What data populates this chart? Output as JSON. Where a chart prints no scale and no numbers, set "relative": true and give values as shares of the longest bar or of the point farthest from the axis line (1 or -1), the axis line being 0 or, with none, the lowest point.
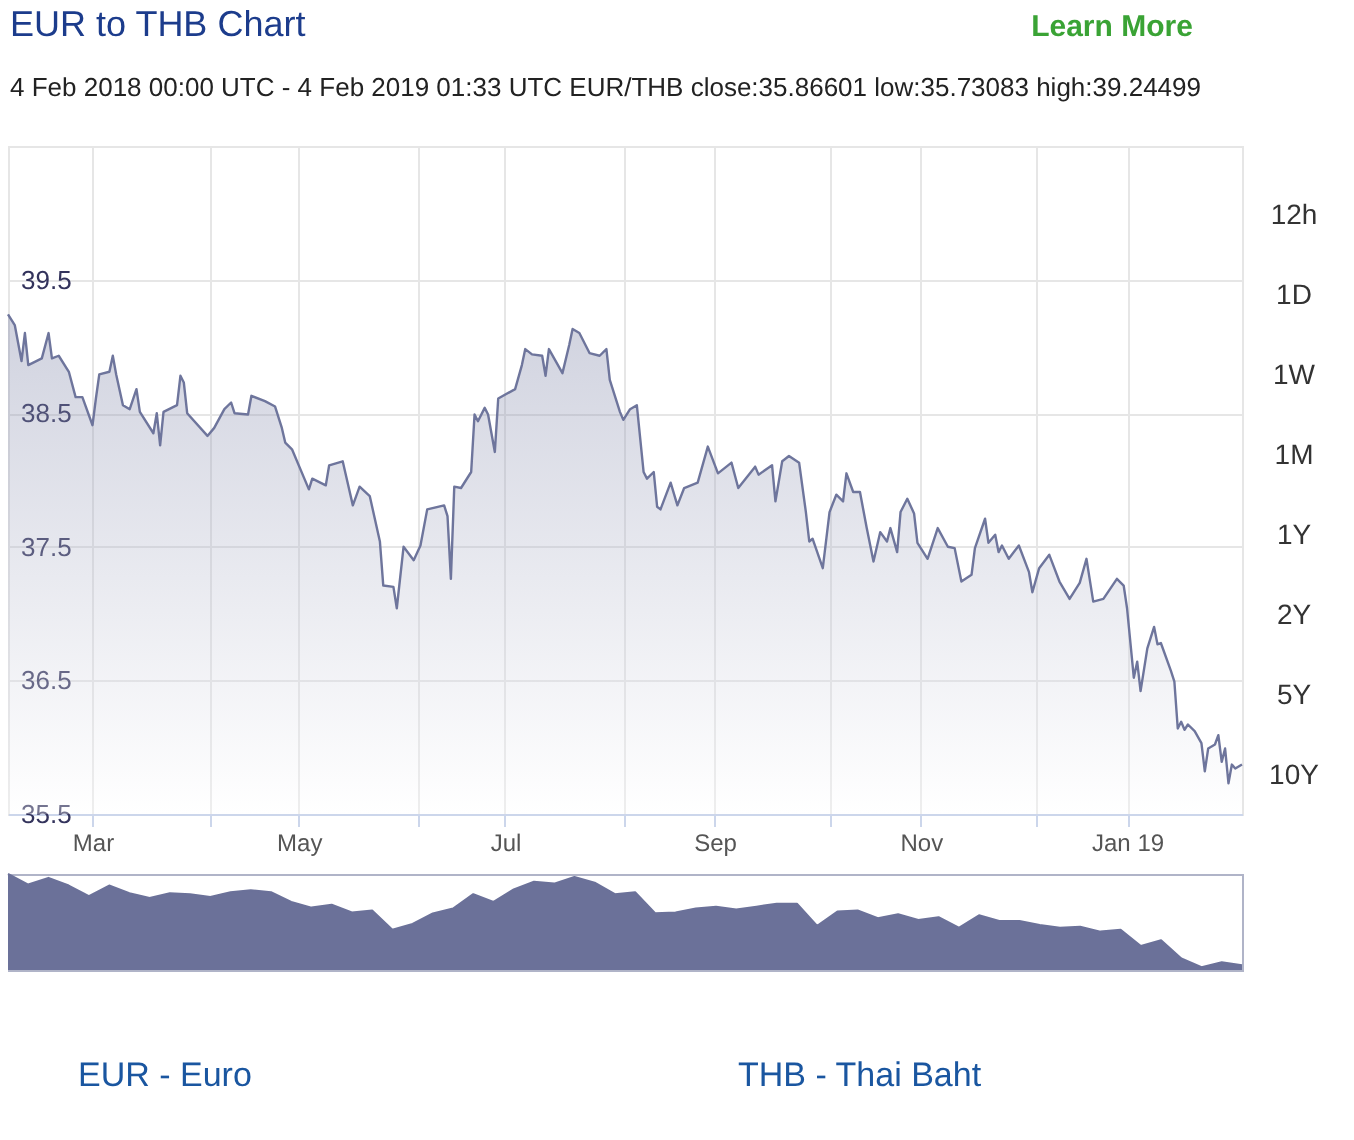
{
  "chart_data": [
    {
      "type": "area",
      "title": "EUR to THB Chart",
      "subtitle": "4 Feb 2018 00:00 UTC - 4 Feb 2019 01:33 UTC EUR/THB close:35.86601 low:35.73083 high:39.24499",
      "x": [
        "2018-02-04",
        "2018-02-06",
        "2018-02-08",
        "2018-02-09",
        "2018-02-10",
        "2018-02-14",
        "2018-02-16",
        "2018-02-17",
        "2018-02-19",
        "2018-02-22",
        "2018-02-24",
        "2018-02-26",
        "2018-03-01",
        "2018-03-02",
        "2018-03-03",
        "2018-03-06",
        "2018-03-07",
        "2018-03-08",
        "2018-03-10",
        "2018-03-12",
        "2018-03-14",
        "2018-03-15",
        "2018-03-19",
        "2018-03-20",
        "2018-03-21",
        "2018-03-22",
        "2018-03-26",
        "2018-03-27",
        "2018-03-28",
        "2018-03-29",
        "2018-04-04",
        "2018-04-06",
        "2018-04-09",
        "2018-04-11",
        "2018-04-12",
        "2018-04-16",
        "2018-04-17",
        "2018-04-21",
        "2018-04-24",
        "2018-04-26",
        "2018-04-27",
        "2018-04-29",
        "2018-05-04",
        "2018-05-05",
        "2018-05-09",
        "2018-05-10",
        "2018-05-14",
        "2018-05-15",
        "2018-05-17",
        "2018-05-19",
        "2018-05-22",
        "2018-05-25",
        "2018-05-26",
        "2018-05-29",
        "2018-05-30",
        "2018-06-01",
        "2018-06-04",
        "2018-06-06",
        "2018-06-08",
        "2018-06-13",
        "2018-06-14",
        "2018-06-15",
        "2018-06-16",
        "2018-06-18",
        "2018-06-21",
        "2018-06-22",
        "2018-06-23",
        "2018-06-25",
        "2018-06-26",
        "2018-06-28",
        "2018-06-29",
        "2018-07-04",
        "2018-07-06",
        "2018-07-07",
        "2018-07-09",
        "2018-07-12",
        "2018-07-13",
        "2018-07-14",
        "2018-07-18",
        "2018-07-20",
        "2018-07-21",
        "2018-07-23",
        "2018-07-26",
        "2018-07-29",
        "2018-07-31",
        "2018-08-01",
        "2018-08-04",
        "2018-08-05",
        "2018-08-07",
        "2018-08-09",
        "2018-08-11",
        "2018-08-12",
        "2018-08-14",
        "2018-08-15",
        "2018-08-16",
        "2018-08-19",
        "2018-08-21",
        "2018-08-23",
        "2018-08-27",
        "2018-08-30",
        "2018-09-02",
        "2018-09-06",
        "2018-09-08",
        "2018-09-13",
        "2018-09-14",
        "2018-09-18",
        "2018-09-19",
        "2018-09-21",
        "2018-09-23",
        "2018-09-26",
        "2018-09-28",
        "2018-09-29",
        "2018-09-30",
        "2018-10-03",
        "2018-10-05",
        "2018-10-07",
        "2018-10-09",
        "2018-10-10",
        "2018-10-12",
        "2018-10-14",
        "2018-10-16",
        "2018-10-18",
        "2018-10-20",
        "2018-10-22",
        "2018-10-23",
        "2018-10-25",
        "2018-10-26",
        "2018-10-28",
        "2018-10-30",
        "2018-10-31",
        "2018-11-03",
        "2018-11-06",
        "2018-11-09",
        "2018-11-11",
        "2018-11-13",
        "2018-11-16",
        "2018-11-17",
        "2018-11-20",
        "2018-11-21",
        "2018-11-23",
        "2018-11-24",
        "2018-11-25",
        "2018-11-27",
        "2018-11-30",
        "2018-12-03",
        "2018-12-04",
        "2018-12-06",
        "2018-12-09",
        "2018-12-12",
        "2018-12-15",
        "2018-12-18",
        "2018-12-20",
        "2018-12-22",
        "2018-12-25",
        "2018-12-29",
        "2018-12-31",
        "2019-01-01",
        "2019-01-03",
        "2019-01-04",
        "2019-01-05",
        "2019-01-07",
        "2019-01-09",
        "2019-01-10",
        "2019-01-11",
        "2019-01-14",
        "2019-01-15",
        "2019-01-16",
        "2019-01-17",
        "2019-01-18",
        "2019-01-19",
        "2019-01-21",
        "2019-01-23",
        "2019-01-24",
        "2019-01-25",
        "2019-01-27",
        "2019-01-28",
        "2019-01-29",
        "2019-01-30",
        "2019-01-31",
        "2019-02-01",
        "2019-02-02",
        "2019-02-04"
      ],
      "values": [
        39.24,
        39.16,
        38.89,
        39.1,
        38.86,
        38.91,
        39.1,
        38.91,
        38.93,
        38.81,
        38.62,
        38.62,
        38.41,
        38.61,
        38.79,
        38.81,
        38.93,
        38.79,
        38.56,
        38.53,
        38.68,
        38.51,
        38.35,
        38.5,
        38.26,
        38.51,
        38.56,
        38.78,
        38.73,
        38.5,
        38.33,
        38.39,
        38.53,
        38.58,
        38.5,
        38.49,
        38.63,
        38.59,
        38.55,
        38.39,
        38.28,
        38.23,
        37.93,
        38.01,
        37.96,
        38.11,
        38.14,
        38.03,
        37.81,
        37.95,
        37.88,
        37.54,
        37.21,
        37.2,
        37.04,
        37.5,
        37.4,
        37.51,
        37.78,
        37.81,
        37.73,
        37.26,
        37.95,
        37.94,
        38.06,
        38.49,
        38.44,
        38.54,
        38.49,
        38.21,
        38.61,
        38.68,
        38.86,
        38.98,
        38.94,
        38.93,
        38.78,
        38.98,
        38.8,
        39.01,
        39.13,
        39.1,
        38.95,
        38.93,
        38.98,
        38.75,
        38.51,
        38.45,
        38.53,
        38.56,
        38.06,
        38.01,
        38.06,
        37.8,
        37.78,
        37.98,
        37.81,
        37.94,
        37.98,
        38.25,
        38.05,
        38.13,
        37.94,
        38.1,
        38.04,
        38.11,
        37.84,
        38.14,
        38.18,
        38.13,
        37.76,
        37.54,
        37.56,
        37.34,
        37.76,
        37.89,
        37.84,
        38.05,
        37.91,
        37.91,
        37.64,
        37.39,
        37.61,
        37.54,
        37.64,
        37.46,
        37.76,
        37.86,
        37.75,
        37.53,
        37.41,
        37.64,
        37.5,
        37.49,
        37.24,
        37.29,
        37.49,
        37.71,
        37.53,
        37.59,
        37.46,
        37.51,
        37.41,
        37.51,
        37.31,
        37.16,
        37.34,
        37.44,
        37.24,
        37.11,
        37.23,
        37.41,
        37.09,
        37.11,
        37.26,
        37.21,
        37.04,
        36.52,
        36.64,
        36.42,
        36.74,
        36.9,
        36.77,
        36.78,
        36.57,
        36.49,
        36.14,
        36.19,
        36.13,
        36.17,
        36.12,
        36.03,
        35.82,
        35.99,
        36.02,
        36.09,
        35.89,
        35.99,
        35.73,
        35.87,
        35.84,
        35.87
      ],
      "color": "#6e759c",
      "xlim": [
        "2018-02-04",
        "2019-02-04"
      ],
      "xticks": [
        {
          "value": "2018-03-01",
          "label": "Mar"
        },
        {
          "value": "2018-04-05",
          "label": null
        },
        {
          "value": "2018-05-01",
          "label": "May"
        },
        {
          "value": "2018-06-05",
          "label": null
        },
        {
          "value": "2018-07-01",
          "label": "Jul"
        },
        {
          "value": "2018-08-05",
          "label": null
        },
        {
          "value": "2018-09-01",
          "label": "Sep"
        },
        {
          "value": "2018-10-05",
          "label": null
        },
        {
          "value": "2018-11-01",
          "label": "Nov"
        },
        {
          "value": "2018-12-05",
          "label": null
        },
        {
          "value": "2019-01-01",
          "label": "Jan 19"
        }
      ],
      "ylim": [
        35.5,
        40.5
      ],
      "yticks": [
        35.5,
        36.5,
        37.5,
        38.5,
        39.5
      ],
      "grid": true,
      "annotations": [
        "Learn More",
        "12h",
        "1D",
        "1W",
        "1M",
        "1Y",
        "2Y",
        "5Y",
        "10Y"
      ]
    },
    {
      "type": "area",
      "categories": [
        null,
        null,
        null,
        null,
        null,
        null,
        null,
        null,
        null,
        null,
        null,
        null,
        null,
        null,
        null,
        null,
        null,
        null,
        null,
        null,
        null,
        null,
        null,
        null,
        null,
        null,
        null,
        null,
        null,
        null,
        null,
        null,
        null,
        null,
        null,
        null,
        null,
        null,
        null,
        null,
        null,
        null,
        null,
        null,
        null,
        null,
        null,
        null,
        null,
        null,
        null,
        null,
        null,
        null,
        null,
        null,
        null,
        null,
        null,
        null,
        null,
        null
      ],
      "values": [
        1.0,
        0.89,
        0.96,
        0.88,
        0.77,
        0.88,
        0.8,
        0.75,
        0.8,
        0.79,
        0.76,
        0.81,
        0.83,
        0.81,
        0.71,
        0.65,
        0.68,
        0.6,
        0.62,
        0.42,
        0.48,
        0.59,
        0.64,
        0.79,
        0.71,
        0.84,
        0.92,
        0.9,
        0.97,
        0.91,
        0.79,
        0.81,
        0.59,
        0.6,
        0.64,
        0.66,
        0.63,
        0.66,
        0.69,
        0.69,
        0.46,
        0.61,
        0.62,
        0.54,
        0.58,
        0.52,
        0.55,
        0.44,
        0.57,
        0.51,
        0.51,
        0.47,
        0.44,
        0.45,
        0.4,
        0.42,
        0.25,
        0.31,
        0.12,
        0.03,
        0.08,
        0.05
      ],
      "relative": true,
      "color": "#6b7199",
      "annotations": [
        "EUR - Euro",
        "THB - Thai Baht"
      ]
    }
  ]
}
